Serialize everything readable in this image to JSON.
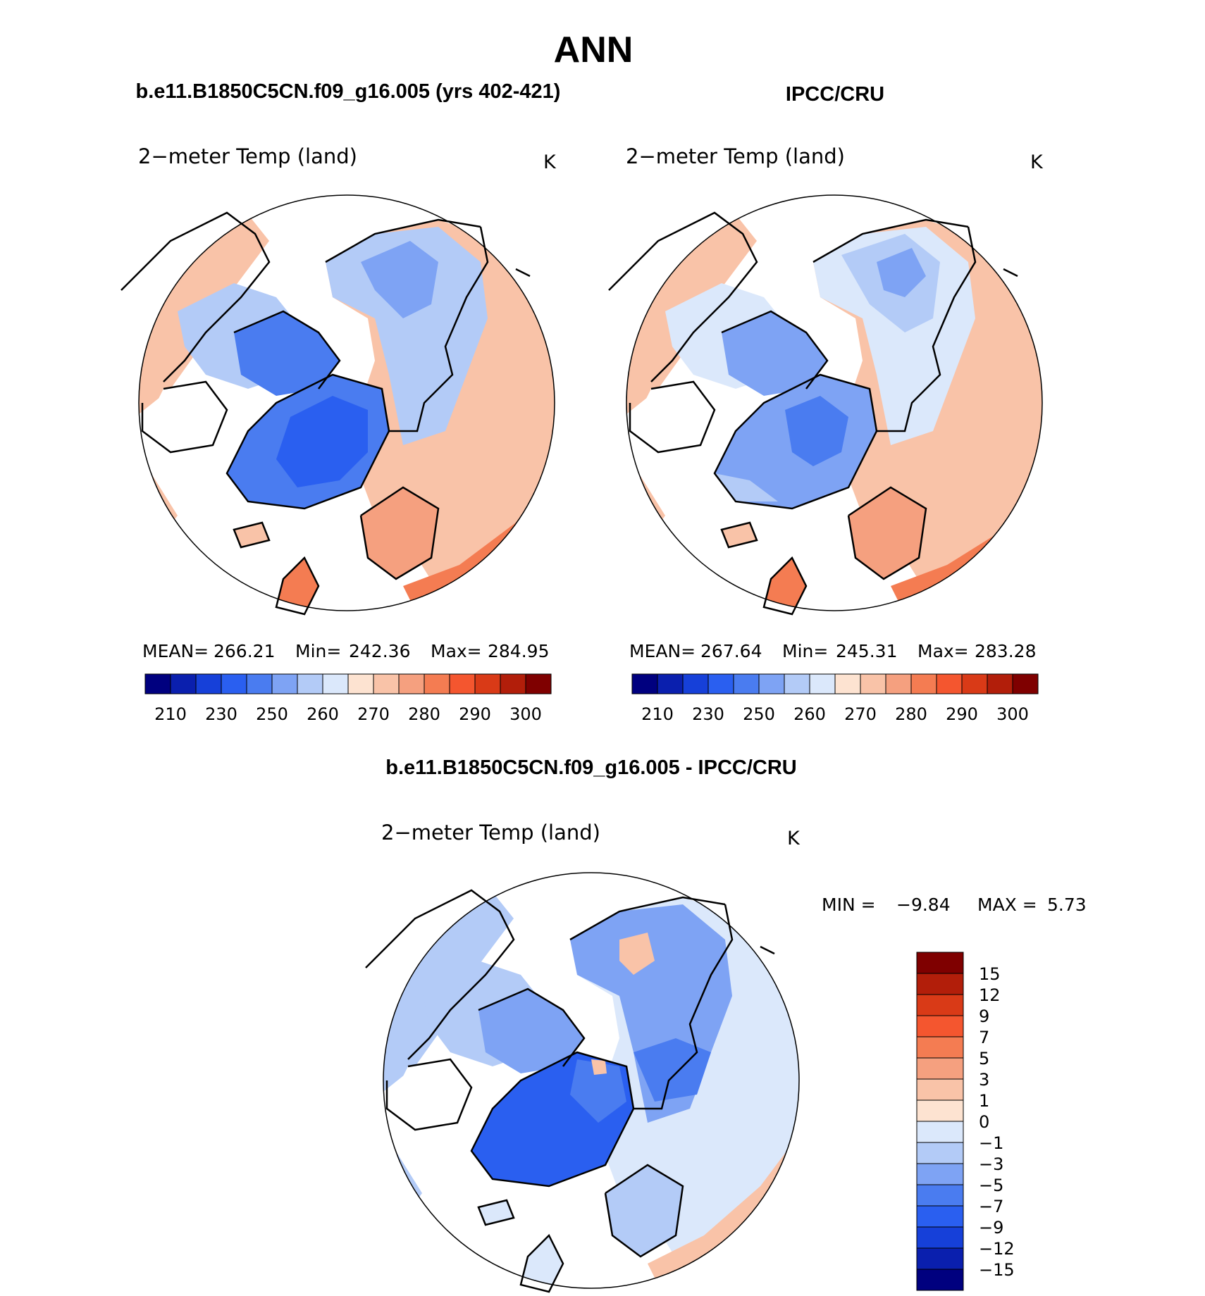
{
  "page_title": "ANN",
  "panels": [
    {
      "heading": "b.e11.B1850C5CN.f09_g16.005 (yrs 402-421)",
      "variable": "2−meter Temp (land)",
      "units": "K",
      "stats": {
        "mean": "266.21",
        "min": "242.36",
        "max": "284.95"
      },
      "stats_labels": {
        "mean": "MEAN=",
        "min": "Min=",
        "max": "Max="
      },
      "colorbar_ticks": [
        "210",
        "230",
        "250",
        "260",
        "270",
        "280",
        "290",
        "300"
      ]
    },
    {
      "heading": "IPCC/CRU",
      "variable": "2−meter Temp (land)",
      "units": "K",
      "stats": {
        "mean": "267.64",
        "min": "245.31",
        "max": "283.28"
      },
      "stats_labels": {
        "mean": "MEAN=",
        "min": "Min=",
        "max": "Max="
      },
      "colorbar_ticks": [
        "210",
        "230",
        "250",
        "260",
        "270",
        "280",
        "290",
        "300"
      ]
    }
  ],
  "difference": {
    "heading": "b.e11.B1850C5CN.f09_g16.005 - IPCC/CRU",
    "variable": "2−meter Temp (land)",
    "units": "K",
    "min_label": "MIN =",
    "min_value": "−9.84",
    "max_label": "MAX =",
    "max_value": "5.73",
    "colorbar_ticks": [
      "15",
      "12",
      "9",
      "7",
      "5",
      "3",
      "1",
      "0",
      "−1",
      "−3",
      "−5",
      "−7",
      "−9",
      "−12",
      "−15"
    ]
  },
  "colors": {
    "abs_scale": [
      "#00007f",
      "#0a1fae",
      "#1640d9",
      "#2a5ff0",
      "#4a7cf0",
      "#7ea3f4",
      "#b3cbf7",
      "#dbe8fb",
      "#fde3d1",
      "#f9c3a8",
      "#f5a07f",
      "#f47c52",
      "#f4562f",
      "#d93a17",
      "#b21e0a",
      "#7f0000"
    ],
    "diff_scale": [
      "#7f0000",
      "#b21e0a",
      "#d93a17",
      "#f4562f",
      "#f47c52",
      "#f5a07f",
      "#f9c3a8",
      "#fde3d1",
      "#dbe8fb",
      "#b3cbf7",
      "#7ea3f4",
      "#4a7cf0",
      "#2a5ff0",
      "#1640d9",
      "#0a1fae",
      "#00007f"
    ]
  }
}
